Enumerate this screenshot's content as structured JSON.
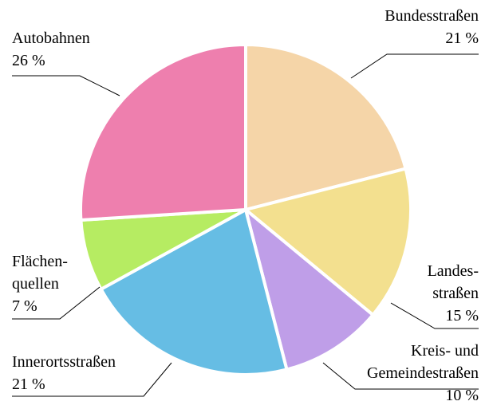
{
  "chart_data": {
    "type": "pie",
    "categories": [
      "Bundesstraßen",
      "Landes-\nstraßen",
      "Kreis- und\nGemeindestraßen",
      "Innerortsstraßen",
      "Flächen-\nquellen",
      "Autobahnen"
    ],
    "values": [
      21,
      15,
      10,
      21,
      7,
      26
    ],
    "value_labels": [
      "21 %",
      "15 %",
      "10 %",
      "21 %",
      "7 %",
      "26 %"
    ],
    "colors": [
      "#f5d5a8",
      "#f3e08f",
      "#bf9ee8",
      "#66bde4",
      "#b6ec62",
      "#ee7fae"
    ]
  }
}
